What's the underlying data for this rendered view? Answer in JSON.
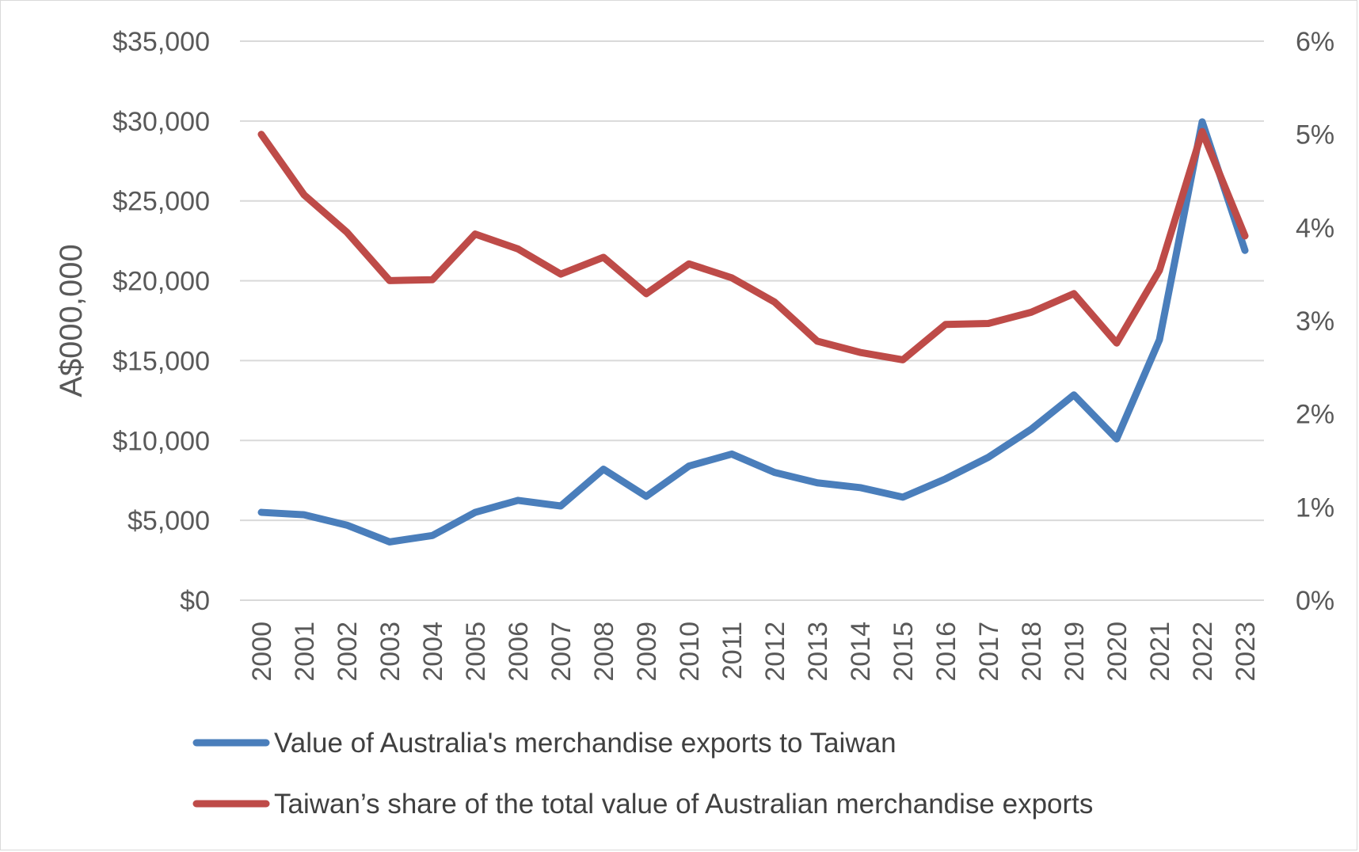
{
  "chart_data": {
    "type": "line",
    "title": "",
    "xlabel": "",
    "ylabel": "A$000,000",
    "y_ticks": [
      "$0",
      "$5,000",
      "$10,000",
      "$15,000",
      "$20,000",
      "$25,000",
      "$30,000",
      "$35,000"
    ],
    "y2_ticks": [
      "0%",
      "1%",
      "2%",
      "3%",
      "4%",
      "5%",
      "6%"
    ],
    "ylim": [
      0,
      35000
    ],
    "y2lim": [
      0,
      6
    ],
    "grid": true,
    "legend_position": "bottom",
    "categories": [
      "2000",
      "2001",
      "2002",
      "2003",
      "2004",
      "2005",
      "2006",
      "2007",
      "2008",
      "2009",
      "2010",
      "2011",
      "2012",
      "2013",
      "2014",
      "2015",
      "2016",
      "2017",
      "2018",
      "2019",
      "2020",
      "2021",
      "2022",
      "2023"
    ],
    "series": [
      {
        "name": "Value of Australia's merchandise exports to Taiwan",
        "axis": "left",
        "color": "#4a7ebb",
        "values": [
          5500,
          5350,
          4700,
          3650,
          4050,
          5500,
          6250,
          5900,
          8200,
          6500,
          8400,
          9150,
          8000,
          7350,
          7050,
          6450,
          7600,
          8950,
          10700,
          12850,
          10100,
          16300,
          29950,
          21900
        ]
      },
      {
        "name": "Taiwan’s share of the total value of Australian merchandise exports",
        "axis": "right",
        "color": "#be4b48",
        "values": [
          5.0,
          4.35,
          3.95,
          3.43,
          3.44,
          3.93,
          3.77,
          3.5,
          3.68,
          3.29,
          3.61,
          3.46,
          3.2,
          2.78,
          2.66,
          2.58,
          2.96,
          2.97,
          3.09,
          3.29,
          2.76,
          3.54,
          5.03,
          3.91
        ]
      }
    ]
  }
}
